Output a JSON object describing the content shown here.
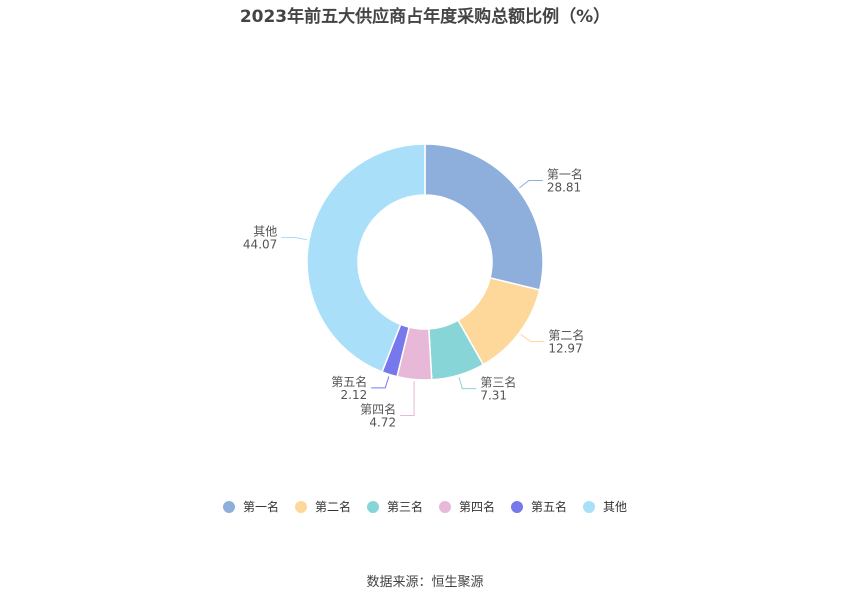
{
  "title": "2023年前五大供应商占年度采购总额比例（%）",
  "source": "数据来源：恒生聚源",
  "chart_data": {
    "type": "pie",
    "variant": "donut",
    "categories": [
      "第一名",
      "第二名",
      "第三名",
      "第四名",
      "第五名",
      "其他"
    ],
    "values": [
      28.81,
      12.97,
      7.31,
      4.72,
      2.12,
      44.07
    ],
    "value_labels": [
      "28.81",
      "12.97",
      "7.31",
      "4.72",
      "2.12",
      "44.07"
    ],
    "colors": [
      "#8eaedb",
      "#fdd89a",
      "#87d5d6",
      "#e7b8d8",
      "#7678ec",
      "#a9dff8"
    ],
    "legend_position": "bottom"
  }
}
